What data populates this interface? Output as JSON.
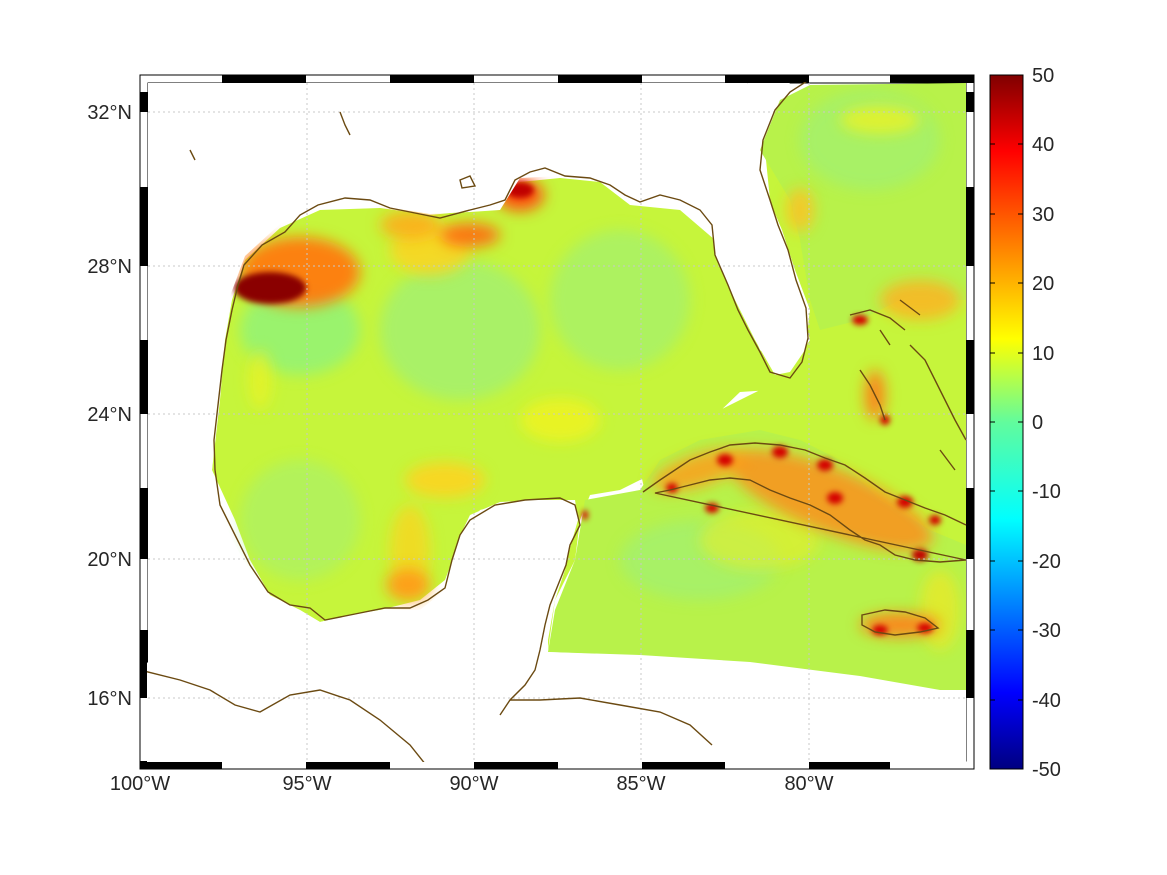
{
  "map": {
    "projection": "Mercator with frame border",
    "lon_range": [
      "100°W",
      "75°W"
    ],
    "lat_range": [
      "14°N",
      "33°N"
    ],
    "x_ticks": [
      {
        "label": "100°W",
        "lon": -100
      },
      {
        "label": "95°W",
        "lon": -95
      },
      {
        "label": "90°W",
        "lon": -90
      },
      {
        "label": "85°W",
        "lon": -85
      },
      {
        "label": "80°W",
        "lon": -80
      }
    ],
    "y_ticks": [
      {
        "label": "32°N",
        "lat": 32
      },
      {
        "label": "28°N",
        "lat": 28
      },
      {
        "label": "24°N",
        "lat": 24
      },
      {
        "label": "20°N",
        "lat": 20
      },
      {
        "label": "16°N",
        "lat": 16
      }
    ],
    "grid": true,
    "coastline_color": "#6b4a12"
  },
  "colorbar": {
    "colormap": "jet",
    "min": -50,
    "max": 50,
    "ticks": [
      "50",
      "40",
      "30",
      "20",
      "10",
      "0",
      "-10",
      "-20",
      "-30",
      "-40",
      "-50"
    ]
  },
  "chart_data": {
    "type": "heatmap",
    "field_range": [
      -50,
      50
    ],
    "background_value_approx": 5,
    "hotspots": [
      {
        "region": "Texas coast near 27.5°N 96.5°W",
        "value_approx": 50
      },
      {
        "region": "Mississippi delta",
        "value_approx": 35
      },
      {
        "region": "Louisiana coast",
        "value_approx": 30
      },
      {
        "region": "Cuba",
        "value_approx": 30
      },
      {
        "region": "Jamaica",
        "value_approx": 30
      },
      {
        "region": "Andros / Bahamas",
        "value_approx": 30
      },
      {
        "region": "Bay of Campeche",
        "value_approx": 20
      },
      {
        "region": "Florida Atlantic coast",
        "value_approx": 20
      }
    ]
  }
}
